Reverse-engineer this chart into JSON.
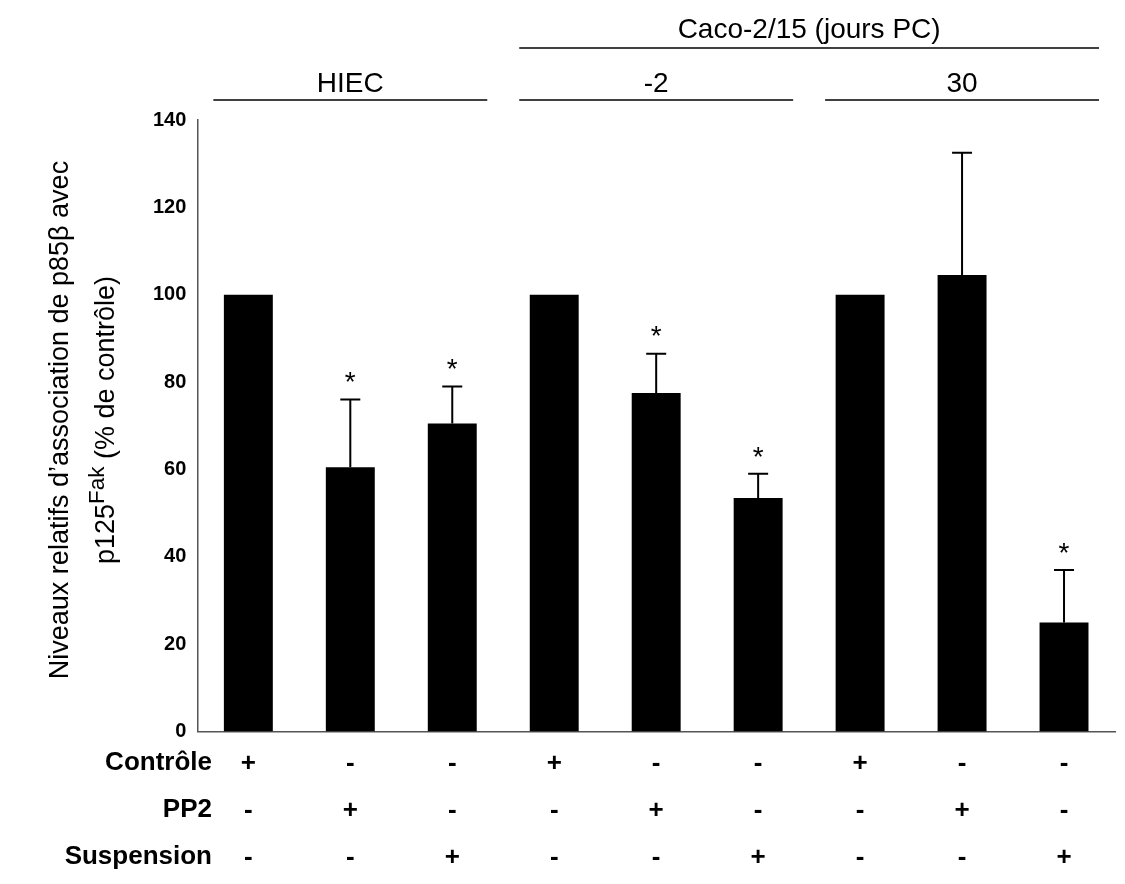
{
  "chart_data": {
    "type": "bar",
    "ylabel": "Niveaux relatifs d’association de p85β avec p125$^{Fak}$ (% de contrôle)",
    "categories": [
      "+\n-\n-",
      "-\n+\n-",
      "-\n-\n+",
      "+\n-\n-",
      "-\n+\n-",
      "-\n-\n+",
      "+\n-\n-",
      "-\n+\n-",
      "-\n-\n+"
    ],
    "values": [
      100,
      60.5,
      70.5,
      100,
      77.5,
      53.5,
      100,
      104.5,
      25
    ],
    "errors": [
      null,
      [
        60.5,
        76
      ],
      [
        70.5,
        79
      ],
      null,
      [
        77.5,
        86.5
      ],
      [
        53.5,
        59
      ],
      null,
      [
        104.5,
        132.5
      ],
      [
        25,
        37
      ]
    ],
    "value_labels": [
      null,
      "*",
      "*",
      null,
      "*",
      "*",
      null,
      null,
      "*"
    ],
    "color": "#000000",
    "ylim": [
      0,
      140
    ],
    "yticks": [
      0,
      20,
      40,
      60,
      80,
      100,
      120,
      140
    ],
    "annotations": [
      "Contrôle",
      "PP2",
      "Suspension",
      "HIEC",
      "-2",
      "30",
      "Caco-2/15 (jours PC)"
    ]
  }
}
